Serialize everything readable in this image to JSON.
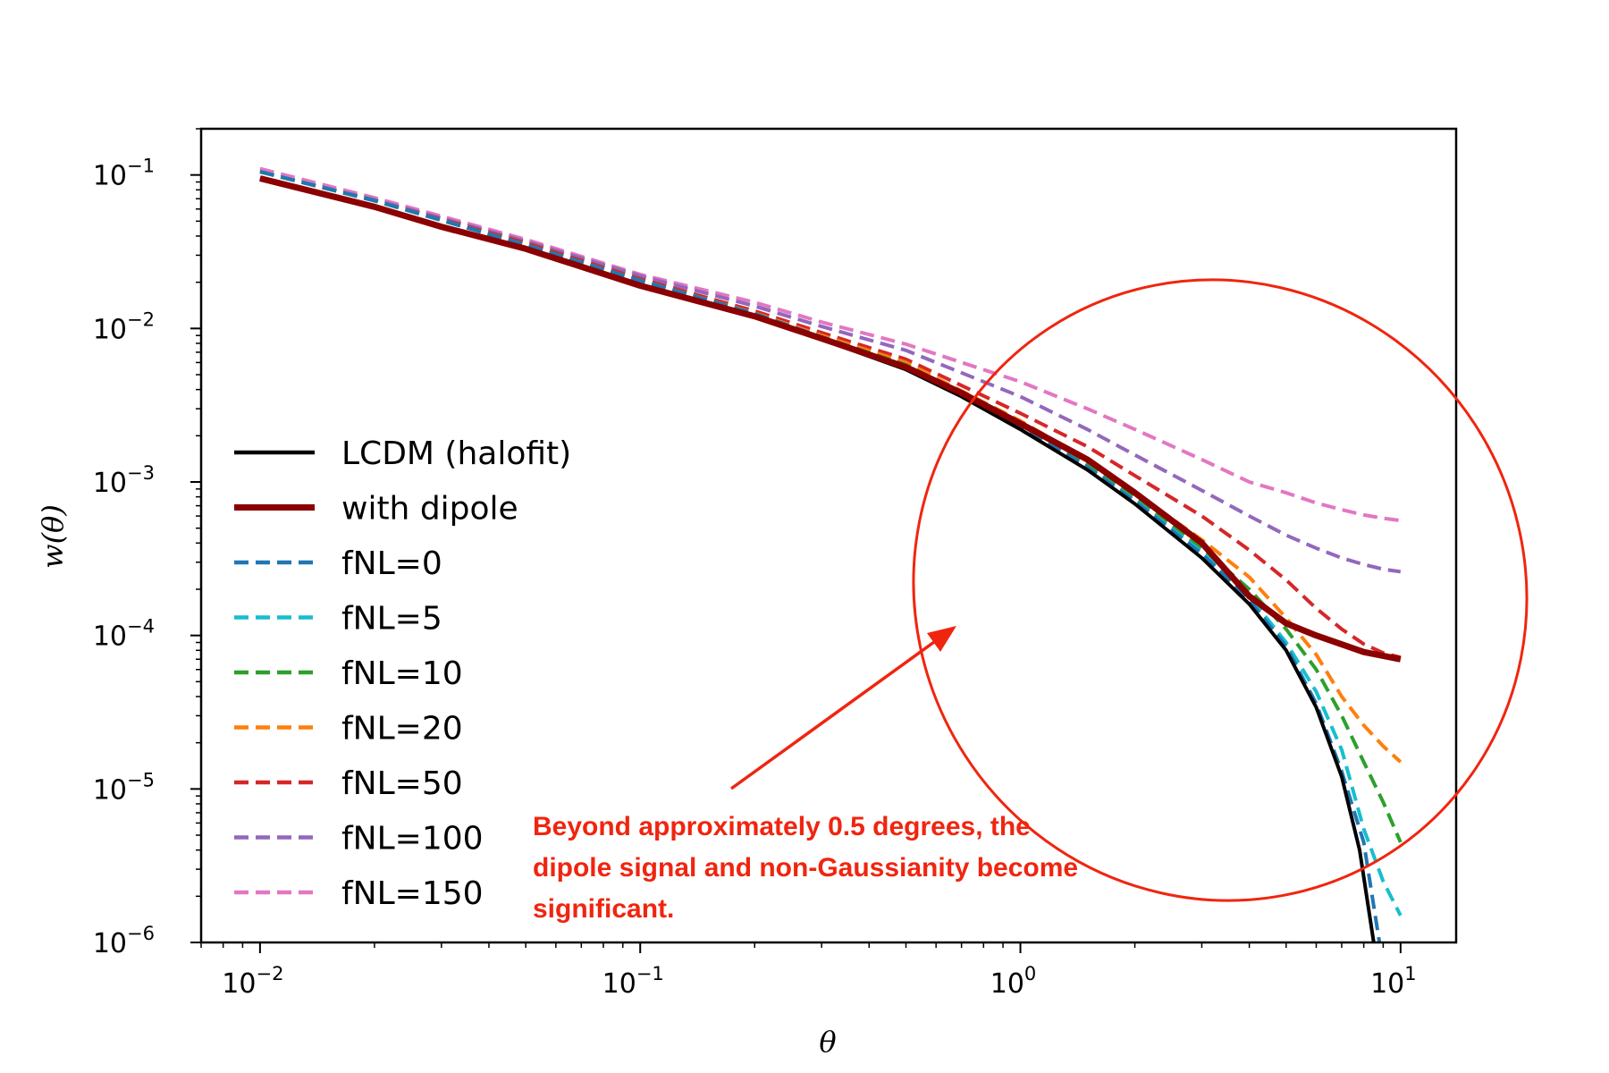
{
  "chart_data": {
    "type": "line",
    "xscale": "log",
    "yscale": "log",
    "xlim": [
      0.007,
      14
    ],
    "ylim": [
      1e-06,
      0.2
    ],
    "xlabel": "θ",
    "ylabel": "w(θ)",
    "x_ticks": [
      {
        "value": 0.01,
        "base": "10",
        "exp": "−2"
      },
      {
        "value": 0.1,
        "base": "10",
        "exp": "−1"
      },
      {
        "value": 1,
        "base": "10",
        "exp": "0"
      },
      {
        "value": 10,
        "base": "10",
        "exp": "1"
      }
    ],
    "y_ticks": [
      {
        "value": 0.1,
        "base": "10",
        "exp": "−1"
      },
      {
        "value": 0.01,
        "base": "10",
        "exp": "−2"
      },
      {
        "value": 0.001,
        "base": "10",
        "exp": "−3"
      },
      {
        "value": 0.0001,
        "base": "10",
        "exp": "−4"
      },
      {
        "value": 1e-05,
        "base": "10",
        "exp": "−5"
      },
      {
        "value": 1e-06,
        "base": "10",
        "exp": "−6"
      }
    ],
    "legend_position": "center-left",
    "series": [
      {
        "name": "LCDM (halofit)",
        "color": "#000000",
        "style": "solid",
        "width": 4,
        "points": [
          [
            0.01,
            0.095
          ],
          [
            0.02,
            0.062
          ],
          [
            0.03,
            0.046
          ],
          [
            0.05,
            0.033
          ],
          [
            0.1,
            0.019
          ],
          [
            0.2,
            0.012
          ],
          [
            0.3,
            0.0085
          ],
          [
            0.5,
            0.0054
          ],
          [
            0.7,
            0.0036
          ],
          [
            1,
            0.0022
          ],
          [
            1.5,
            0.0012
          ],
          [
            2,
            0.00072
          ],
          [
            3,
            0.00032
          ],
          [
            4,
            0.00016
          ],
          [
            5,
            8e-05
          ],
          [
            6,
            3.4e-05
          ],
          [
            7,
            1.2e-05
          ],
          [
            7.8,
            4e-06
          ],
          [
            8.5,
            1e-06
          ]
        ]
      },
      {
        "name": "with dipole",
        "color": "#8b0000",
        "style": "solid",
        "width": 7,
        "points": [
          [
            0.01,
            0.095
          ],
          [
            0.02,
            0.062
          ],
          [
            0.03,
            0.046
          ],
          [
            0.05,
            0.033
          ],
          [
            0.1,
            0.019
          ],
          [
            0.2,
            0.012
          ],
          [
            0.3,
            0.0086
          ],
          [
            0.5,
            0.0056
          ],
          [
            0.7,
            0.0038
          ],
          [
            1,
            0.0024
          ],
          [
            1.5,
            0.0014
          ],
          [
            2,
            0.00085
          ],
          [
            3,
            0.0004
          ],
          [
            4,
            0.00018
          ],
          [
            5,
            0.00012
          ],
          [
            6,
            0.0001
          ],
          [
            8,
            7.8e-05
          ],
          [
            10,
            7e-05
          ]
        ]
      },
      {
        "name": "fNL=0",
        "color": "#1f77b4",
        "style": "dashed",
        "width": 4,
        "points": [
          [
            0.01,
            0.105
          ],
          [
            0.02,
            0.068
          ],
          [
            0.05,
            0.035
          ],
          [
            0.1,
            0.0205
          ],
          [
            0.2,
            0.0125
          ],
          [
            0.3,
            0.0088
          ],
          [
            0.5,
            0.0057
          ],
          [
            1,
            0.0023
          ],
          [
            1.5,
            0.00125
          ],
          [
            2,
            0.00075
          ],
          [
            3,
            0.00034
          ],
          [
            4,
            0.00017
          ],
          [
            5,
            8.5e-05
          ],
          [
            6,
            3.6e-05
          ],
          [
            7,
            1.3e-05
          ],
          [
            8,
            4.5e-06
          ],
          [
            8.8,
            1e-06
          ]
        ]
      },
      {
        "name": "fNL=5",
        "color": "#17becf",
        "style": "dashed",
        "width": 4,
        "points": [
          [
            0.01,
            0.105
          ],
          [
            0.02,
            0.068
          ],
          [
            0.05,
            0.035
          ],
          [
            0.1,
            0.0205
          ],
          [
            0.2,
            0.0125
          ],
          [
            0.3,
            0.0088
          ],
          [
            0.5,
            0.0057
          ],
          [
            1,
            0.0023
          ],
          [
            1.5,
            0.00125
          ],
          [
            2,
            0.00076
          ],
          [
            3,
            0.00035
          ],
          [
            4,
            0.00018
          ],
          [
            5,
            9e-05
          ],
          [
            6,
            4.3e-05
          ],
          [
            7,
            1.8e-05
          ],
          [
            8,
            5.5e-06
          ],
          [
            9,
            2.5e-06
          ],
          [
            10,
            1.5e-06
          ]
        ]
      },
      {
        "name": "fNL=10",
        "color": "#2ca02c",
        "style": "dashed",
        "width": 4,
        "points": [
          [
            0.01,
            0.105
          ],
          [
            0.02,
            0.068
          ],
          [
            0.05,
            0.035
          ],
          [
            0.1,
            0.0205
          ],
          [
            0.2,
            0.0125
          ],
          [
            0.3,
            0.0088
          ],
          [
            0.5,
            0.0058
          ],
          [
            1,
            0.0024
          ],
          [
            1.5,
            0.0013
          ],
          [
            2,
            0.00079
          ],
          [
            3,
            0.00037
          ],
          [
            4,
            0.0002
          ],
          [
            5,
            0.00011
          ],
          [
            6,
            6e-05
          ],
          [
            7,
            3e-05
          ],
          [
            8,
            1.5e-05
          ],
          [
            9,
            8.2e-06
          ],
          [
            10,
            4.5e-06
          ]
        ]
      },
      {
        "name": "fNL=20",
        "color": "#ff7f0e",
        "style": "dashed",
        "width": 4,
        "points": [
          [
            0.01,
            0.105
          ],
          [
            0.02,
            0.068
          ],
          [
            0.05,
            0.035
          ],
          [
            0.1,
            0.0205
          ],
          [
            0.2,
            0.0126
          ],
          [
            0.3,
            0.009
          ],
          [
            0.5,
            0.006
          ],
          [
            1,
            0.0025
          ],
          [
            1.5,
            0.0014
          ],
          [
            2,
            0.00085
          ],
          [
            3,
            0.00042
          ],
          [
            4,
            0.00024
          ],
          [
            5,
            0.00013
          ],
          [
            6,
            7.5e-05
          ],
          [
            7,
            4e-05
          ],
          [
            8,
            2.6e-05
          ],
          [
            9,
            1.9e-05
          ],
          [
            10,
            1.5e-05
          ]
        ]
      },
      {
        "name": "fNL=50",
        "color": "#d62728",
        "style": "dashed",
        "width": 4,
        "points": [
          [
            0.01,
            0.105
          ],
          [
            0.02,
            0.068
          ],
          [
            0.05,
            0.036
          ],
          [
            0.1,
            0.021
          ],
          [
            0.2,
            0.013
          ],
          [
            0.3,
            0.0094
          ],
          [
            0.5,
            0.0063
          ],
          [
            1,
            0.0028
          ],
          [
            1.5,
            0.0017
          ],
          [
            2,
            0.0011
          ],
          [
            3,
            0.0006
          ],
          [
            4,
            0.00036
          ],
          [
            5,
            0.00023
          ],
          [
            6,
            0.00015
          ],
          [
            7,
            0.00011
          ],
          [
            8,
            8.8e-05
          ],
          [
            9,
            7.7e-05
          ],
          [
            10,
            7.2e-05
          ]
        ]
      },
      {
        "name": "fNL=100",
        "color": "#9467bd",
        "style": "dashed",
        "width": 4,
        "points": [
          [
            0.01,
            0.105
          ],
          [
            0.02,
            0.069
          ],
          [
            0.05,
            0.037
          ],
          [
            0.1,
            0.022
          ],
          [
            0.2,
            0.014
          ],
          [
            0.3,
            0.0103
          ],
          [
            0.5,
            0.0072
          ],
          [
            1,
            0.0036
          ],
          [
            1.5,
            0.0022
          ],
          [
            2,
            0.0015
          ],
          [
            3,
            0.00088
          ],
          [
            4,
            0.0006
          ],
          [
            5,
            0.00045
          ],
          [
            6,
            0.00037
          ],
          [
            7,
            0.00032
          ],
          [
            8,
            0.00029
          ],
          [
            9,
            0.00027
          ],
          [
            10,
            0.00026
          ]
        ]
      },
      {
        "name": "fNL=150",
        "color": "#e377c2",
        "style": "dashed",
        "width": 4,
        "points": [
          [
            0.01,
            0.11
          ],
          [
            0.02,
            0.071
          ],
          [
            0.05,
            0.038
          ],
          [
            0.1,
            0.0225
          ],
          [
            0.2,
            0.0148
          ],
          [
            0.3,
            0.011
          ],
          [
            0.5,
            0.0079
          ],
          [
            1,
            0.0045
          ],
          [
            1.5,
            0.003
          ],
          [
            2,
            0.0022
          ],
          [
            3,
            0.0014
          ],
          [
            4,
            0.001
          ],
          [
            5,
            0.00085
          ],
          [
            6,
            0.00073
          ],
          [
            7,
            0.00066
          ],
          [
            8,
            0.00061
          ],
          [
            9,
            0.00058
          ],
          [
            10,
            0.00056
          ]
        ]
      }
    ],
    "annotation": {
      "lines": [
        "Beyond approximately 0.5 degrees, the",
        "dipole signal and non-Gaussianity become",
        "significant."
      ],
      "color": "#f0250f"
    }
  }
}
